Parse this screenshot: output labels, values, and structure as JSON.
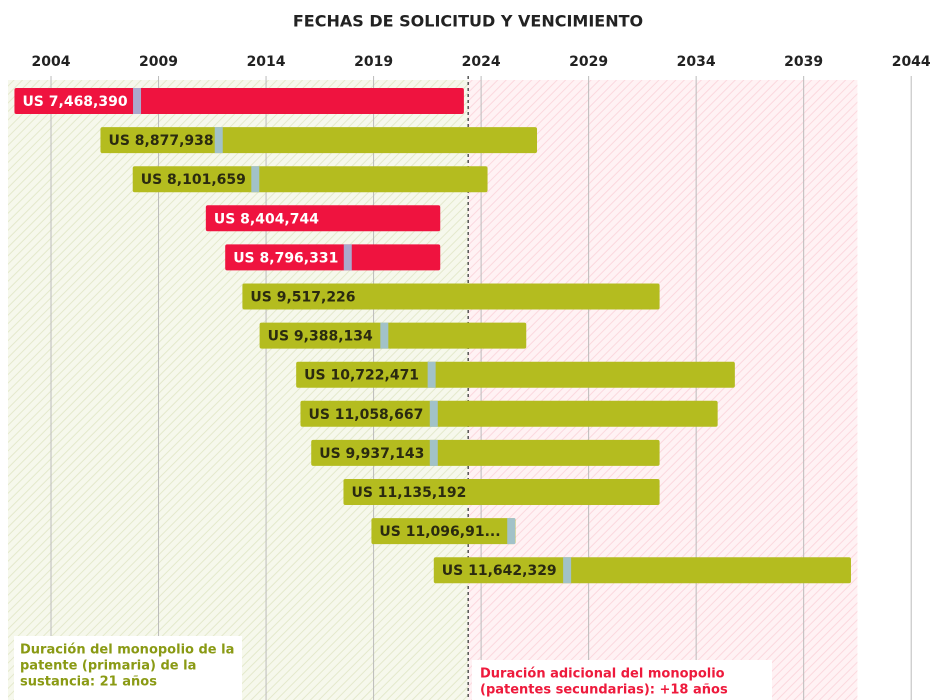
{
  "chart_data": {
    "type": "floating-bar",
    "title": "FECHAS DE SOLICITUD Y VENCIMIENTO",
    "categories": [
      "US 7,468,390",
      "US 8,877,938",
      "US 8,101,659",
      "US 8,404,744",
      "US 8,796,331",
      "US 9,517,226",
      "US 9,388,134",
      "US 10,722,471",
      "US 11,058,667",
      "US 9,937,143",
      "US 11,135,192",
      "US 11,096,91...",
      "US 11,642,329"
    ],
    "starts": [
      2002.3,
      2006.3,
      2007.8,
      2011.2,
      2012.1,
      2012.9,
      2013.7,
      2015.4,
      2015.6,
      2016.1,
      2017.6,
      2018.9,
      2021.8
    ],
    "ends": [
      2023.2,
      2026.6,
      2024.3,
      2022.1,
      2022.1,
      2032.3,
      2026.1,
      2035.8,
      2035.0,
      2032.3,
      2032.3,
      2025.6,
      2041.2
    ],
    "markers": [
      2008.0,
      2011.8,
      2013.5,
      null,
      2017.8,
      null,
      2019.5,
      2021.7,
      2021.8,
      2021.8,
      null,
      2025.4,
      2028.0
    ],
    "colors": [
      "#ef133f",
      "#b4bc1f",
      "#b4bc1f",
      "#ef133f",
      "#ef133f",
      "#b4bc1f",
      "#b4bc1f",
      "#b4bc1f",
      "#b4bc1f",
      "#b4bc1f",
      "#b4bc1f",
      "#b4bc1f",
      "#b4bc1f"
    ],
    "marker_color": "#9fc3e6",
    "xlim": [
      2002,
      2045.2
    ],
    "xticks": [
      2004,
      2009,
      2014,
      2019,
      2024,
      2029,
      2034,
      2039,
      2044
    ],
    "grid": true,
    "divider": 2023.4,
    "shade_end": 2041.5,
    "annotations": [
      {
        "lines": [
          "Duración del monopolio de la",
          "patente (primaria) de la",
          "sustancia: 21 años"
        ],
        "color": "#8a9a14"
      },
      {
        "lines": [
          "Duración adicional del monopolio",
          "(patentes secundarias): +18 años"
        ],
        "color": "#ee1a3c"
      }
    ]
  }
}
